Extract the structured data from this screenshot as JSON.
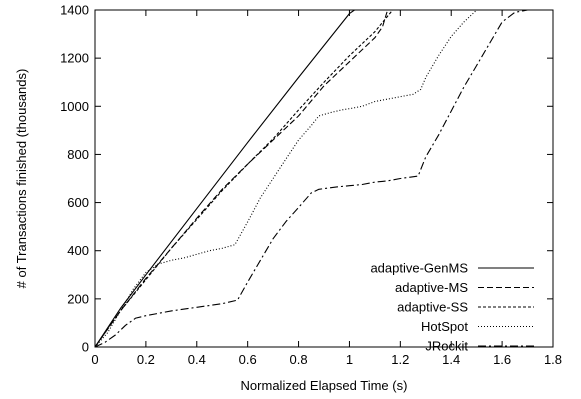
{
  "chart_data": {
    "type": "line",
    "xlabel": "Normalized Elapsed Time (s)",
    "ylabel": "# of Transactions finished (thousands)",
    "xlim": [
      0,
      1.8
    ],
    "ylim": [
      0,
      1400
    ],
    "xticks": [
      0,
      0.2,
      0.4,
      0.6,
      0.8,
      1,
      1.2,
      1.4,
      1.6,
      1.8
    ],
    "xtick_labels": [
      "0",
      "0.2",
      "0.4",
      "0.6",
      "0.8",
      "1",
      "1.2",
      "1.4",
      "1.6",
      "1.8"
    ],
    "yticks": [
      0,
      200,
      400,
      600,
      800,
      1000,
      1200,
      1400
    ],
    "ytick_labels": [
      "0",
      "200",
      "400",
      "600",
      "800",
      "1000",
      "1200",
      "1400"
    ],
    "grid": false,
    "legend_position": "bottom-right",
    "series": [
      {
        "name": "adaptive-GenMS",
        "dash": "solid",
        "x": [
          0,
          0.1,
          0.2,
          0.4,
          0.6,
          0.8,
          1.0,
          1.02
        ],
        "y": [
          0,
          160,
          300,
          575,
          850,
          1120,
          1385,
          1400
        ]
      },
      {
        "name": "adaptive-MS",
        "dash": "dashed",
        "x": [
          0,
          0.1,
          0.2,
          0.3,
          0.4,
          0.5,
          0.6,
          0.7,
          0.8,
          0.9,
          1.0,
          1.1,
          1.13,
          1.15
        ],
        "y": [
          0,
          150,
          285,
          410,
          535,
          655,
          760,
          860,
          960,
          1085,
          1185,
          1285,
          1330,
          1400
        ]
      },
      {
        "name": "adaptive-SS",
        "dash": "short-dashed",
        "x": [
          0,
          0.1,
          0.2,
          0.3,
          0.4,
          0.5,
          0.6,
          0.7,
          0.8,
          0.9,
          1.0,
          1.1,
          1.17
        ],
        "y": [
          0,
          150,
          280,
          410,
          530,
          650,
          760,
          865,
          985,
          1100,
          1210,
          1310,
          1400
        ]
      },
      {
        "name": "HotSpot",
        "dash": "dotted",
        "x": [
          0,
          0.05,
          0.1,
          0.15,
          0.2,
          0.25,
          0.3,
          0.35,
          0.4,
          0.45,
          0.5,
          0.55,
          0.6,
          0.65,
          0.7,
          0.75,
          0.8,
          0.85,
          0.88,
          0.93,
          0.97,
          1.0,
          1.05,
          1.1,
          1.15,
          1.2,
          1.25,
          1.28,
          1.3,
          1.35,
          1.4,
          1.45,
          1.5
        ],
        "y": [
          0,
          60,
          150,
          240,
          310,
          345,
          360,
          370,
          385,
          400,
          410,
          425,
          520,
          620,
          700,
          780,
          860,
          920,
          960,
          975,
          985,
          990,
          1000,
          1020,
          1030,
          1040,
          1050,
          1070,
          1120,
          1210,
          1290,
          1350,
          1400
        ]
      },
      {
        "name": "JRockit",
        "dash": "dash-dot",
        "x": [
          0,
          0.04,
          0.08,
          0.12,
          0.16,
          0.2,
          0.3,
          0.4,
          0.5,
          0.56,
          0.6,
          0.65,
          0.7,
          0.75,
          0.8,
          0.85,
          0.88,
          0.95,
          1.0,
          1.05,
          1.1,
          1.15,
          1.2,
          1.27,
          1.3,
          1.35,
          1.4,
          1.45,
          1.5,
          1.55,
          1.6,
          1.65,
          1.7
        ],
        "y": [
          0,
          20,
          50,
          90,
          120,
          130,
          150,
          165,
          180,
          195,
          270,
          360,
          450,
          520,
          580,
          640,
          655,
          665,
          670,
          675,
          685,
          690,
          700,
          710,
          790,
          880,
          980,
          1080,
          1170,
          1260,
          1350,
          1390,
          1400
        ]
      }
    ]
  }
}
